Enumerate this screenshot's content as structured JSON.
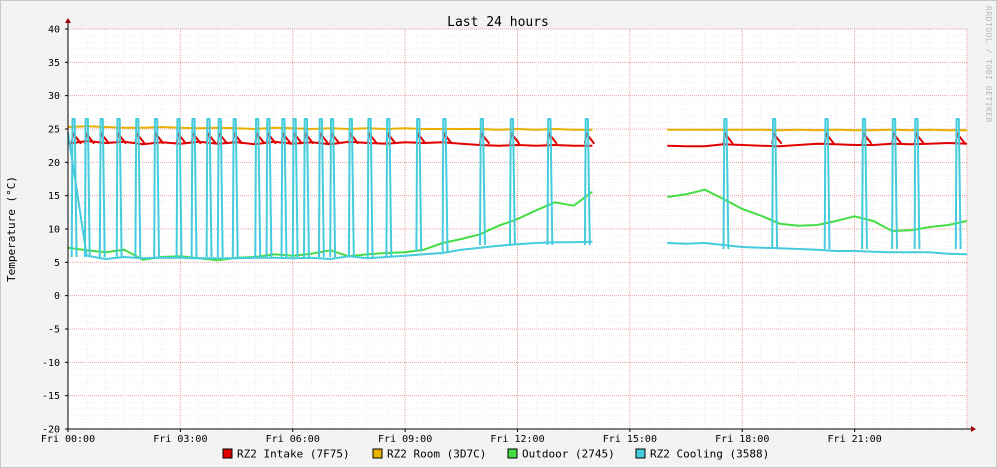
{
  "chart_data": {
    "type": "line",
    "title": "Last 24 hours",
    "ylabel": "Temperature (°C)",
    "xlabel": "",
    "ylim": [
      -20,
      40
    ],
    "yticks": [
      40,
      35,
      30,
      25,
      20,
      15,
      10,
      5,
      0,
      -5,
      -10,
      -15,
      -20
    ],
    "x_range_hours": [
      0,
      24
    ],
    "x_tick_hours": [
      0,
      3,
      6,
      9,
      12,
      15,
      18,
      21
    ],
    "x_tick_labels": [
      "Fri 00:00",
      "Fri 03:00",
      "Fri 06:00",
      "Fri 09:00",
      "Fri 12:00",
      "Fri 15:00",
      "Fri 18:00",
      "Fri 21:00"
    ],
    "grid": true,
    "legend_position": "bottom",
    "watermark": "RRDTOOL / TOBI OETIKER",
    "series": [
      {
        "name": "RZ2 Intake (7F75)",
        "color": "#e00000",
        "x": [
          0,
          0.5,
          1,
          1.5,
          2,
          2.5,
          3,
          3.5,
          4,
          4.5,
          5,
          5.5,
          6,
          6.5,
          7,
          7.5,
          8,
          8.5,
          9,
          9.5,
          10,
          10.5,
          11,
          11.5,
          12,
          12.5,
          13,
          13.5,
          14,
          14.5,
          15,
          15.5,
          16,
          16.5,
          17,
          17.5,
          18,
          18.5,
          19,
          19.5,
          20,
          20.5,
          21,
          21.5,
          22,
          22.5,
          23,
          23.5,
          24
        ],
        "y": [
          22.8,
          23.2,
          22.9,
          23.1,
          22.7,
          23.0,
          22.8,
          23.1,
          22.8,
          23.0,
          22.7,
          23.1,
          22.8,
          23.0,
          22.7,
          23.1,
          22.9,
          22.8,
          23.0,
          22.9,
          23.0,
          22.8,
          22.6,
          22.5,
          22.6,
          22.5,
          22.6,
          22.5,
          22.5,
          null,
          null,
          null,
          22.5,
          22.4,
          22.4,
          22.7,
          22.6,
          22.5,
          22.4,
          22.6,
          22.8,
          22.7,
          22.6,
          22.6,
          22.8,
          22.7,
          22.8,
          22.9,
          22.8
        ]
      },
      {
        "name": "RZ2 Room (3D7C)",
        "color": "#e8b000",
        "x": [
          0,
          0.5,
          1,
          1.5,
          2,
          2.5,
          3,
          3.5,
          4,
          4.5,
          5,
          5.5,
          6,
          6.5,
          7,
          7.5,
          8,
          8.5,
          9,
          9.5,
          10,
          10.5,
          11,
          11.5,
          12,
          12.5,
          13,
          13.5,
          14,
          14.5,
          15,
          15.5,
          16,
          16.5,
          17,
          17.5,
          18,
          18.5,
          19,
          19.5,
          20,
          20.5,
          21,
          21.5,
          22,
          22.5,
          23,
          23.5,
          24
        ],
        "y": [
          25.3,
          25.4,
          25.3,
          25.2,
          25.2,
          25.3,
          25.2,
          25.1,
          25.2,
          25.1,
          25.0,
          25.2,
          25.1,
          25.0,
          25.1,
          25.0,
          25.1,
          25.0,
          25.1,
          25.0,
          25.0,
          25.0,
          25.0,
          24.9,
          25.0,
          24.9,
          25.0,
          24.9,
          24.9,
          null,
          null,
          null,
          24.9,
          24.9,
          24.9,
          24.9,
          24.9,
          24.9,
          24.8,
          24.9,
          24.8,
          24.9,
          24.8,
          24.8,
          24.9,
          24.8,
          24.9,
          24.8,
          24.8
        ]
      },
      {
        "name": "Outdoor (2745)",
        "color": "#44dd44",
        "x": [
          0,
          0.5,
          1,
          1.5,
          2,
          2.5,
          3,
          3.5,
          4,
          4.5,
          5,
          5.5,
          6,
          6.5,
          7,
          7.5,
          8,
          8.5,
          9,
          9.5,
          10,
          10.5,
          11,
          11.5,
          12,
          12.5,
          13,
          13.5,
          14,
          14.5,
          15,
          15.5,
          16,
          16.5,
          17,
          17.5,
          18,
          18.5,
          19,
          19.5,
          20,
          20.5,
          21,
          21.5,
          22,
          22.5,
          23,
          23.5,
          24
        ],
        "y": [
          7.2,
          6.8,
          6.5,
          6.9,
          5.4,
          5.8,
          5.9,
          5.6,
          5.3,
          5.7,
          5.8,
          6.2,
          6.0,
          6.3,
          6.8,
          5.9,
          6.2,
          6.4,
          6.5,
          6.9,
          7.9,
          8.5,
          9.2,
          10.5,
          11.5,
          12.8,
          14.0,
          13.5,
          15.6,
          null,
          null,
          null,
          14.8,
          15.2,
          15.9,
          14.5,
          13.0,
          12.0,
          10.8,
          10.5,
          10.6,
          11.2,
          11.9,
          11.2,
          9.7,
          9.8,
          10.3,
          10.6,
          11.2
        ]
      },
      {
        "name": "RZ2 Cooling (3588)",
        "color": "#44ccdd",
        "x": [
          0,
          0.5,
          1,
          1.5,
          2,
          2.5,
          3,
          3.5,
          4,
          4.5,
          5,
          5.5,
          6,
          6.5,
          7,
          7.5,
          8,
          8.5,
          9,
          9.5,
          10,
          10.5,
          11,
          11.5,
          12,
          12.5,
          13,
          13.5,
          14,
          14.5,
          15,
          15.5,
          16,
          16.5,
          17,
          17.5,
          18,
          18.5,
          19,
          19.5,
          20,
          20.5,
          21,
          21.5,
          22,
          22.5,
          23,
          23.5,
          24
        ],
        "y": [
          24.5,
          6.0,
          5.5,
          5.8,
          5.6,
          5.7,
          5.7,
          5.6,
          5.6,
          5.6,
          5.7,
          5.7,
          5.6,
          5.7,
          5.5,
          5.9,
          5.6,
          5.8,
          6.0,
          6.2,
          6.4,
          6.9,
          7.2,
          7.5,
          7.7,
          7.9,
          8.0,
          8.0,
          8.1,
          null,
          null,
          null,
          7.9,
          7.8,
          7.9,
          7.6,
          7.3,
          7.2,
          7.1,
          7.0,
          6.9,
          6.7,
          6.7,
          6.6,
          6.5,
          6.5,
          6.5,
          6.3,
          6.2
        ]
      }
    ],
    "cooling_spikes_hours": [
      0.1,
      0.45,
      0.85,
      1.3,
      1.8,
      2.3,
      2.9,
      3.3,
      3.7,
      4.0,
      4.4,
      5.0,
      5.3,
      5.7,
      6.0,
      6.3,
      6.7,
      7.0,
      7.5,
      8.0,
      8.5,
      9.3,
      10.0,
      11.0,
      11.8,
      12.8,
      13.8,
      17.5,
      18.8,
      20.2,
      21.2,
      22.0,
      22.6,
      23.7
    ]
  }
}
